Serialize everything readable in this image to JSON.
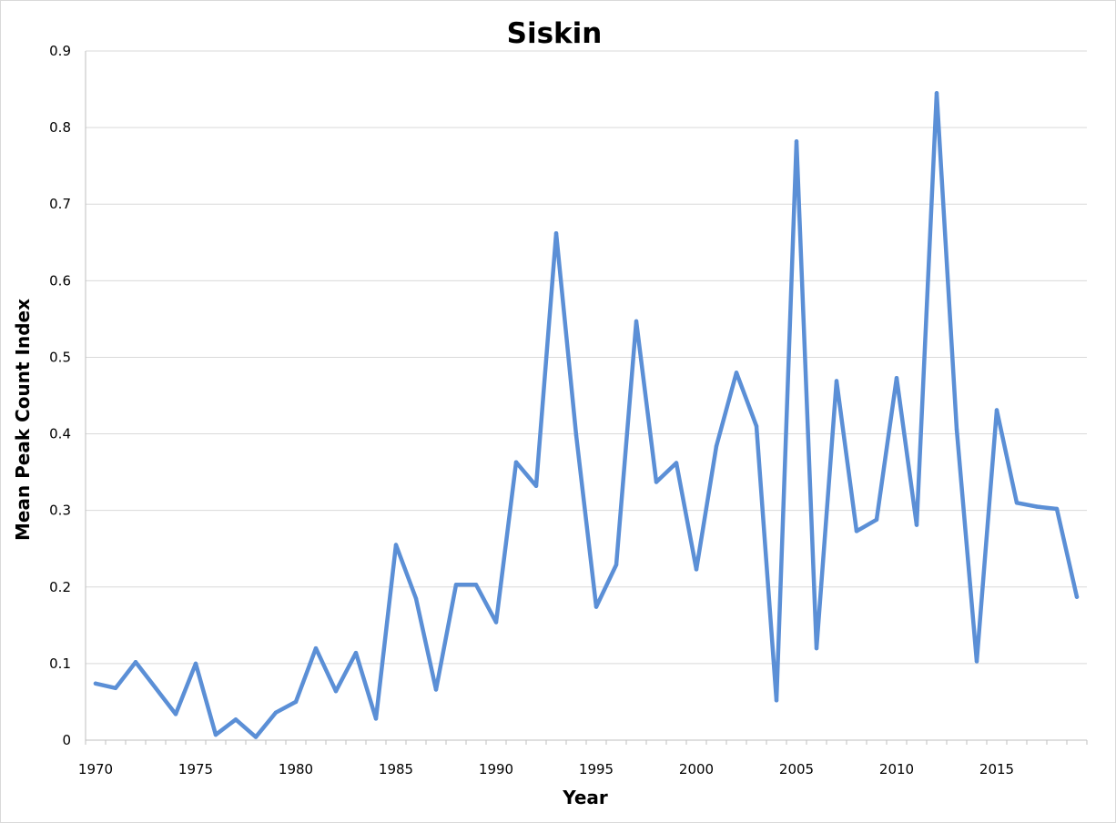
{
  "chart_data": {
    "type": "line",
    "title": "Siskin",
    "xlabel": "Year",
    "ylabel": "Mean Peak Count Index",
    "xlim": [
      1970,
      2019
    ],
    "ylim": [
      0,
      0.9
    ],
    "x_ticks": [
      "1970",
      "1975",
      "1980",
      "1985",
      "1990",
      "1995",
      "2000",
      "2005",
      "2010",
      "2015"
    ],
    "x_tick_values": [
      1970,
      1975,
      1980,
      1985,
      1990,
      1995,
      2000,
      2005,
      2010,
      2015
    ],
    "y_ticks": [
      "0",
      "0.1",
      "0.2",
      "0.3",
      "0.4",
      "0.5",
      "0.6",
      "0.7",
      "0.8",
      "0.9"
    ],
    "y_tick_values": [
      0,
      0.1,
      0.2,
      0.3,
      0.4,
      0.5,
      0.6,
      0.7,
      0.8,
      0.9
    ],
    "grid": true,
    "legend": "none",
    "series": [
      {
        "color": "#5b8fd6",
        "x": [
          1970,
          1971,
          1972,
          1973,
          1974,
          1975,
          1976,
          1977,
          1978,
          1979,
          1980,
          1981,
          1982,
          1983,
          1984,
          1985,
          1986,
          1987,
          1988,
          1989,
          1990,
          1991,
          1992,
          1993,
          1994,
          1995,
          1996,
          1997,
          1998,
          1999,
          2000,
          2001,
          2002,
          2003,
          2004,
          2005,
          2006,
          2007,
          2008,
          2009,
          2010,
          2011,
          2012,
          2013,
          2014,
          2015,
          2016,
          2017,
          2018,
          2019
        ],
        "values": [
          0.074,
          0.068,
          0.102,
          0.068,
          0.034,
          0.1,
          0.007,
          0.027,
          0.004,
          0.036,
          0.05,
          0.12,
          0.064,
          0.114,
          0.028,
          0.255,
          0.185,
          0.066,
          0.203,
          0.203,
          0.154,
          0.363,
          0.332,
          0.662,
          0.398,
          0.174,
          0.229,
          0.547,
          0.337,
          0.362,
          0.223,
          0.384,
          0.48,
          0.41,
          0.052,
          0.782,
          0.12,
          0.469,
          0.273,
          0.288,
          0.473,
          0.281,
          0.845,
          0.406,
          0.103,
          0.431,
          0.31,
          0.305,
          0.302,
          0.187
        ]
      }
    ]
  }
}
